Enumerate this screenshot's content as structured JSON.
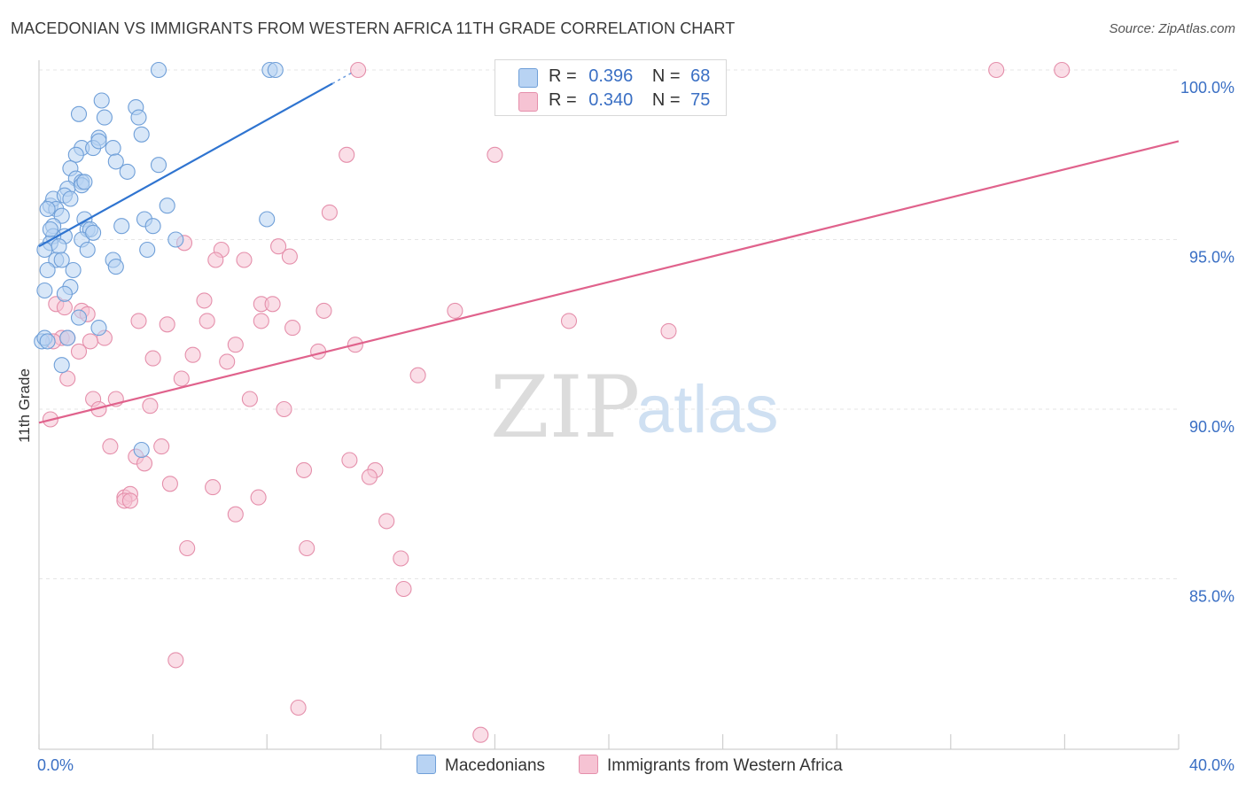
{
  "title": "MACEDONIAN VS IMMIGRANTS FROM WESTERN AFRICA 11TH GRADE CORRELATION CHART",
  "source": "Source: ZipAtlas.com",
  "watermark": {
    "zip": "ZIP",
    "atlas": "atlas"
  },
  "legend": {
    "rows": [
      {
        "r_label": "R =",
        "r_value": "0.396",
        "n_label": "N =",
        "n_value": "68"
      },
      {
        "r_label": "R =",
        "r_value": "0.340",
        "n_label": "N =",
        "n_value": "75"
      }
    ]
  },
  "bottom_legend": {
    "series1": "Macedonians",
    "series2": "Immigrants from Western Africa"
  },
  "colors": {
    "blue_fill": "#b8d3f3",
    "blue_stroke": "#6f9fd8",
    "blue_line": "#2f74d0",
    "pink_fill": "#f6c3d3",
    "pink_stroke": "#e58fab",
    "pink_line": "#e0628c",
    "tick_label": "#3a6fc4",
    "grid": "#e6e6e6"
  },
  "chart_data": {
    "type": "scatter",
    "title": "MACEDONIAN VS IMMIGRANTS FROM WESTERN AFRICA 11TH GRADE CORRELATION CHART",
    "xlabel": "",
    "ylabel": "11th Grade",
    "xlim": [
      0,
      40
    ],
    "ylim": [
      80.8,
      100.7
    ],
    "x_tick_labels": [
      "0.0%",
      "40.0%"
    ],
    "y_ticks": [
      85,
      90,
      95,
      100
    ],
    "y_tick_labels": [
      "85.0%",
      "90.0%",
      "95.0%",
      "100.0%"
    ],
    "grid": true,
    "legend_position": "top-center",
    "series": [
      {
        "name": "Macedonians",
        "stats": {
          "R": 0.396,
          "N": 68
        },
        "trend": {
          "x": [
            0.0,
            10.3
          ],
          "y": [
            94.8,
            99.6
          ]
        },
        "points": [
          [
            4.2,
            100.0
          ],
          [
            8.1,
            100.0
          ],
          [
            8.3,
            100.0
          ],
          [
            2.2,
            99.1
          ],
          [
            1.4,
            98.7
          ],
          [
            2.3,
            98.6
          ],
          [
            3.4,
            98.9
          ],
          [
            3.5,
            98.6
          ],
          [
            2.1,
            98.0
          ],
          [
            3.6,
            98.1
          ],
          [
            1.5,
            97.7
          ],
          [
            1.9,
            97.7
          ],
          [
            2.6,
            97.7
          ],
          [
            2.1,
            97.9
          ],
          [
            1.3,
            97.5
          ],
          [
            1.1,
            97.1
          ],
          [
            2.7,
            97.3
          ],
          [
            3.1,
            97.0
          ],
          [
            4.2,
            97.2
          ],
          [
            1.3,
            96.8
          ],
          [
            1.5,
            96.7
          ],
          [
            1.0,
            96.5
          ],
          [
            1.5,
            96.6
          ],
          [
            1.6,
            96.7
          ],
          [
            0.4,
            96.0
          ],
          [
            0.5,
            96.2
          ],
          [
            0.6,
            95.9
          ],
          [
            0.9,
            96.3
          ],
          [
            1.1,
            96.2
          ],
          [
            0.3,
            95.9
          ],
          [
            4.5,
            96.0
          ],
          [
            0.8,
            95.7
          ],
          [
            1.6,
            95.6
          ],
          [
            3.7,
            95.6
          ],
          [
            8.0,
            95.6
          ],
          [
            0.5,
            95.4
          ],
          [
            1.7,
            95.3
          ],
          [
            1.8,
            95.3
          ],
          [
            2.9,
            95.4
          ],
          [
            4.0,
            95.4
          ],
          [
            0.9,
            95.1
          ],
          [
            0.5,
            95.1
          ],
          [
            1.5,
            95.0
          ],
          [
            0.4,
            94.9
          ],
          [
            4.8,
            95.0
          ],
          [
            0.7,
            94.8
          ],
          [
            0.2,
            94.7
          ],
          [
            1.7,
            94.7
          ],
          [
            3.8,
            94.7
          ],
          [
            0.6,
            94.4
          ],
          [
            0.8,
            94.4
          ],
          [
            2.6,
            94.4
          ],
          [
            2.7,
            94.2
          ],
          [
            0.3,
            94.1
          ],
          [
            1.2,
            94.1
          ],
          [
            1.1,
            93.6
          ],
          [
            0.2,
            93.5
          ],
          [
            0.9,
            93.4
          ],
          [
            1.4,
            92.7
          ],
          [
            2.1,
            92.4
          ],
          [
            0.1,
            92.0
          ],
          [
            0.2,
            92.1
          ],
          [
            1.0,
            92.1
          ],
          [
            0.8,
            91.3
          ],
          [
            3.6,
            88.8
          ],
          [
            0.3,
            92.0
          ],
          [
            0.4,
            95.3
          ],
          [
            1.9,
            95.2
          ]
        ]
      },
      {
        "name": "Immigrants from Western Africa",
        "stats": {
          "R": 0.34,
          "N": 75
        },
        "trend": {
          "x": [
            0.0,
            40.0
          ],
          "y": [
            89.6,
            97.9
          ]
        },
        "points": [
          [
            11.2,
            100.0
          ],
          [
            16.4,
            100.0
          ],
          [
            33.6,
            100.0
          ],
          [
            35.9,
            100.0
          ],
          [
            10.8,
            97.5
          ],
          [
            16.0,
            97.5
          ],
          [
            10.2,
            95.8
          ],
          [
            5.1,
            94.9
          ],
          [
            6.4,
            94.7
          ],
          [
            8.4,
            94.8
          ],
          [
            6.2,
            94.4
          ],
          [
            7.2,
            94.4
          ],
          [
            8.8,
            94.5
          ],
          [
            5.8,
            93.2
          ],
          [
            7.8,
            93.1
          ],
          [
            8.2,
            93.1
          ],
          [
            10.0,
            92.9
          ],
          [
            14.6,
            92.9
          ],
          [
            18.6,
            92.6
          ],
          [
            22.1,
            92.3
          ],
          [
            1.5,
            92.9
          ],
          [
            1.7,
            92.8
          ],
          [
            3.5,
            92.6
          ],
          [
            4.5,
            92.5
          ],
          [
            5.9,
            92.6
          ],
          [
            7.8,
            92.6
          ],
          [
            8.9,
            92.4
          ],
          [
            0.8,
            92.1
          ],
          [
            2.3,
            92.1
          ],
          [
            6.9,
            91.9
          ],
          [
            11.1,
            91.9
          ],
          [
            1.4,
            91.7
          ],
          [
            5.4,
            91.6
          ],
          [
            9.8,
            91.7
          ],
          [
            4.0,
            91.5
          ],
          [
            6.6,
            91.4
          ],
          [
            1.0,
            90.9
          ],
          [
            5.0,
            90.9
          ],
          [
            13.3,
            91.0
          ],
          [
            1.9,
            90.3
          ],
          [
            2.7,
            90.3
          ],
          [
            7.4,
            90.3
          ],
          [
            3.9,
            90.1
          ],
          [
            2.1,
            90.0
          ],
          [
            8.6,
            90.0
          ],
          [
            0.4,
            89.7
          ],
          [
            2.5,
            88.9
          ],
          [
            4.3,
            88.9
          ],
          [
            3.4,
            88.6
          ],
          [
            3.7,
            88.4
          ],
          [
            10.9,
            88.5
          ],
          [
            9.3,
            88.2
          ],
          [
            11.8,
            88.2
          ],
          [
            4.6,
            87.8
          ],
          [
            6.1,
            87.7
          ],
          [
            11.6,
            88.0
          ],
          [
            3.0,
            87.4
          ],
          [
            3.2,
            87.5
          ],
          [
            3.0,
            87.3
          ],
          [
            7.7,
            87.4
          ],
          [
            3.2,
            87.3
          ],
          [
            6.9,
            86.9
          ],
          [
            12.2,
            86.7
          ],
          [
            5.2,
            85.9
          ],
          [
            9.4,
            85.9
          ],
          [
            12.7,
            85.6
          ],
          [
            12.8,
            84.7
          ],
          [
            4.8,
            82.6
          ],
          [
            9.1,
            81.2
          ],
          [
            15.5,
            80.4
          ],
          [
            0.6,
            93.1
          ],
          [
            0.9,
            93.0
          ],
          [
            0.5,
            92.0
          ],
          [
            1.0,
            92.1
          ],
          [
            1.8,
            92.0
          ]
        ]
      }
    ]
  }
}
